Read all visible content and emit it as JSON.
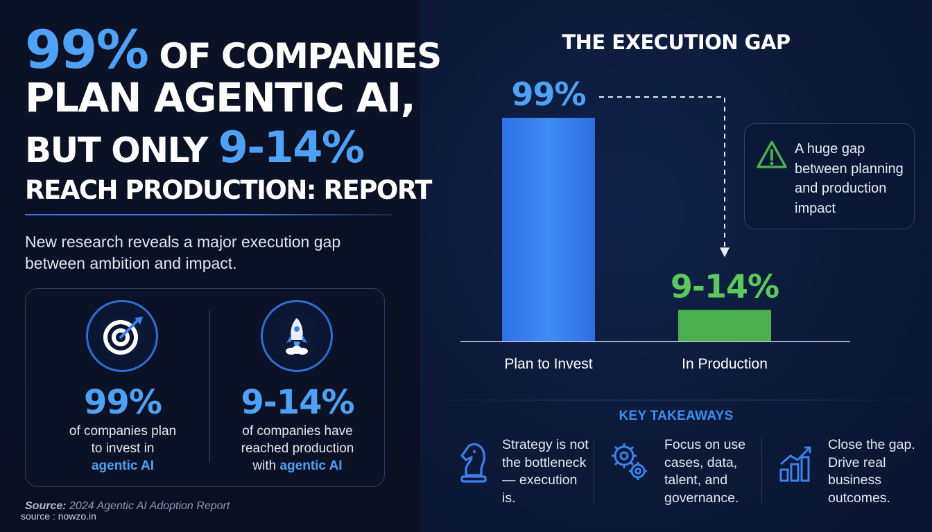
{
  "headline": {
    "line1_accent": "99%",
    "line1_rest": " OF COMPANIES",
    "line2": "PLAN AGENTIC AI,",
    "line3_lead": "BUT ONLY ",
    "line3_accent": "9-14%",
    "line4": "REACH PRODUCTION: REPORT"
  },
  "subtitle": "New research reveals a major execution gap between ambition and impact.",
  "stats": [
    {
      "icon": "target-icon",
      "value": "99%",
      "desc_line1": "of companies plan",
      "desc_line2": "to invest in",
      "desc_accent": "agentic AI"
    },
    {
      "icon": "rocket-icon",
      "value": "9-14%",
      "desc_line1": "of companies have",
      "desc_line2": "reached production",
      "desc_line3_lead": "with ",
      "desc_accent": "agentic AI"
    }
  ],
  "source": {
    "label": "Source:",
    "text": " 2024 Agentic AI Adoption Report"
  },
  "watermark": "source : nowzo.in",
  "colors": {
    "accent_blue": "#4ea1f5",
    "bar_blue": "#3b82f0",
    "bar_green": "#4caf50",
    "label_green": "#5cc95c",
    "warning_green": "#4caf50"
  },
  "chart_data": {
    "type": "bar",
    "title": "THE EXECUTION GAP",
    "categories": [
      "Plan to Invest",
      "In Production"
    ],
    "values": [
      99,
      14
    ],
    "value_labels": [
      "99%",
      "9-14%"
    ],
    "ylim": [
      0,
      100
    ],
    "grid": false,
    "legend": "none"
  },
  "callout": {
    "icon": "warning-icon",
    "text": "A huge gap between planning and production impact"
  },
  "takeaways": {
    "title": "KEY TAKEAWAYS",
    "items": [
      {
        "icon": "chess-knight-icon",
        "text": "Strategy is not the bottleneck— execution is."
      },
      {
        "icon": "gears-icon",
        "text": "Focus on use cases, data, talent, and governance."
      },
      {
        "icon": "growth-chart-icon",
        "text": "Close the gap. Drive real business outcomes."
      }
    ]
  }
}
